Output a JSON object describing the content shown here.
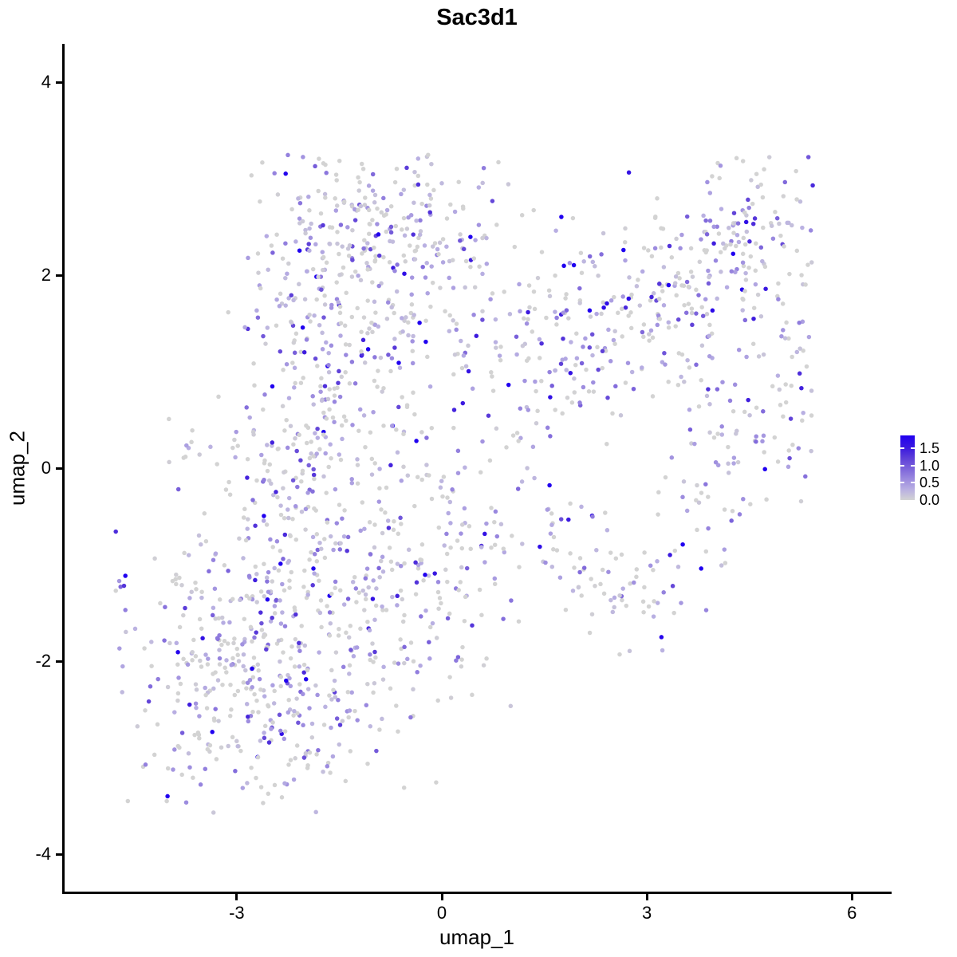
{
  "title": "Sac3d1",
  "chart_data": {
    "type": "scatter",
    "title": "Sac3d1",
    "xlabel": "umap_1",
    "ylabel": "umap_2",
    "xlim": [
      -5.5,
      6.6
    ],
    "ylim": [
      -4.4,
      4.4
    ],
    "xticks": [
      {
        "label": "-3",
        "value": -3
      },
      {
        "label": "0",
        "value": 0
      },
      {
        "label": "3",
        "value": 3
      },
      {
        "label": "6",
        "value": 6
      }
    ],
    "yticks": [
      {
        "label": "4",
        "value": 4
      },
      {
        "label": "2",
        "value": 2
      },
      {
        "label": "0",
        "value": 0
      },
      {
        "label": "-2",
        "value": -2
      },
      {
        "label": "-4",
        "value": -4
      }
    ],
    "grid": false,
    "legend_position": "right",
    "legend": {
      "entries": [
        {
          "label": "1.5",
          "value": 1.5
        },
        {
          "label": "1.0",
          "value": 1.0
        },
        {
          "label": "0.5",
          "value": 0.5
        },
        {
          "label": "0.0",
          "value": 0.0
        }
      ],
      "vmin": 0.0,
      "vmax": 1.87
    },
    "colors": {
      "low": "#D3D3D3",
      "high": "#2000F0",
      "axis": "#000000",
      "background": "#FFFFFF"
    },
    "colorscale": [
      [
        0.0,
        "#D3D3D3"
      ],
      [
        0.3,
        "#B9B0E2"
      ],
      [
        0.6,
        "#9C8BDF"
      ],
      [
        0.9,
        "#7E66DB"
      ],
      [
        1.2,
        "#5F41D8"
      ],
      [
        1.5,
        "#3D1BDE"
      ],
      [
        1.87,
        "#2000F0"
      ]
    ],
    "marker": {
      "shape": "circle",
      "radius": 2.75
    },
    "n_points_estimate": 1900,
    "seed": 42,
    "value_distribution": {
      "p_zero": 0.38,
      "exp_mean": 0.55,
      "vmax": 1.87
    },
    "data_bounds": {
      "x": [
        -4.95,
        5.45
      ],
      "y": [
        -3.6,
        3.25
      ]
    },
    "clusters": [
      {
        "name": "upper-left-blob",
        "type": "gaussian",
        "center": [
          -1.3,
          1.75
        ],
        "sigma": [
          0.95,
          0.85
        ],
        "n": 420
      },
      {
        "name": "top-band",
        "type": "gaussian",
        "center": [
          -0.4,
          2.6
        ],
        "sigma": [
          1.3,
          0.33
        ],
        "n": 120
      },
      {
        "name": "right-arm",
        "type": "strip",
        "from": [
          0.9,
          1.0
        ],
        "to": [
          4.55,
          2.35
        ],
        "sigma": 0.5,
        "n": 290
      },
      {
        "name": "right-arm-tip",
        "type": "gaussian",
        "center": [
          4.6,
          2.6
        ],
        "sigma": [
          0.42,
          0.33
        ],
        "n": 65
      },
      {
        "name": "lower-left-blob",
        "type": "gaussian",
        "center": [
          -2.55,
          -2.05
        ],
        "sigma": [
          1.0,
          0.78
        ],
        "n": 500
      },
      {
        "name": "mid-bridge",
        "type": "gaussian",
        "center": [
          -0.4,
          -0.95
        ],
        "sigma": [
          1.0,
          0.68
        ],
        "n": 215
      },
      {
        "name": "left-mid-filler",
        "type": "gaussian",
        "center": [
          -2.3,
          -0.1
        ],
        "sigma": [
          0.7,
          0.5
        ],
        "n": 115
      },
      {
        "name": "v-connector-left",
        "type": "strip",
        "from": [
          1.1,
          -0.35
        ],
        "to": [
          2.85,
          -1.5
        ],
        "sigma": 0.28,
        "n": 55
      },
      {
        "name": "v-connector-right",
        "type": "strip",
        "from": [
          2.85,
          -1.5
        ],
        "to": [
          4.85,
          0.7
        ],
        "sigma": 0.3,
        "n": 75
      },
      {
        "name": "right-mid-patch",
        "type": "gaussian",
        "center": [
          4.05,
          0.95
        ],
        "sigma": [
          0.7,
          0.55
        ],
        "n": 55
      },
      {
        "name": "right-edge-tail",
        "type": "strip",
        "from": [
          5.3,
          2.25
        ],
        "to": [
          5.05,
          -0.25
        ],
        "sigma": 0.17,
        "n": 40
      }
    ],
    "outlier_points": [
      [
        -4.72,
        -1.17,
        0.5
      ],
      [
        -4.7,
        -1.23,
        0.9
      ],
      [
        -4.65,
        -1.22,
        1.3
      ],
      [
        -4.77,
        -1.27,
        0.0
      ],
      [
        -4.63,
        -1.47,
        0.7
      ],
      [
        -4.12,
        -1.4,
        0.0
      ],
      [
        -4.05,
        -1.44,
        0.8
      ]
    ]
  }
}
